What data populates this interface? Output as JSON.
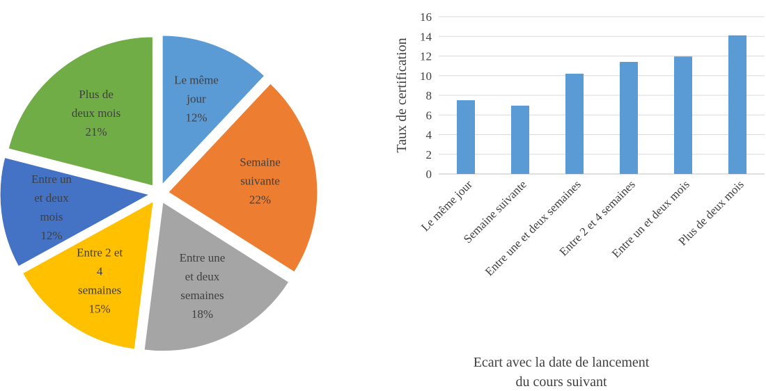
{
  "chart_data": [
    {
      "type": "pie",
      "categories": [
        "Le même jour",
        "Semaine suivante",
        "Entre une et deux semaines",
        "Entre 2 et 4 semaines",
        "Entre un et deux mois",
        "Plus de deux mois"
      ],
      "values": [
        12,
        22,
        18,
        15,
        12,
        21
      ],
      "slice_labels": [
        [
          "Le même",
          "jour",
          "12%"
        ],
        [
          "Semaine",
          "suivante",
          "22%"
        ],
        [
          "Entre une",
          "et deux",
          "semaines",
          "18%"
        ],
        [
          "Entre 2 et",
          "4",
          "semaines",
          "15%"
        ],
        [
          "Entre un",
          "et deux",
          "mois",
          "12%"
        ],
        [
          "Plus de",
          "deux mois",
          "21%"
        ]
      ],
      "colors": [
        "#5B9BD5",
        "#ED7D31",
        "#A5A5A5",
        "#FFC000",
        "#4472C4",
        "#70AD47"
      ],
      "exploded": true
    },
    {
      "type": "bar",
      "categories": [
        "Le même jour",
        "Semaine suivante",
        "Entre une et deux semaines",
        "Entre 2 et 4 semaines",
        "Entre un et deux mois",
        "Plus de deux mois"
      ],
      "values": [
        7.5,
        6.95,
        10.2,
        11.4,
        11.95,
        14.1
      ],
      "ylabel": "Taux de certification",
      "xlabel": "Ecart avec la date de lancement du cours suivant",
      "xlabel_lines": [
        "Ecart avec la date de lancement",
        "du cours suivant"
      ],
      "ylim": [
        0,
        16
      ],
      "yticks": [
        0,
        2,
        4,
        6,
        8,
        10,
        12,
        14,
        16
      ],
      "grid": true,
      "bar_color": "#5B9BD5"
    }
  ]
}
